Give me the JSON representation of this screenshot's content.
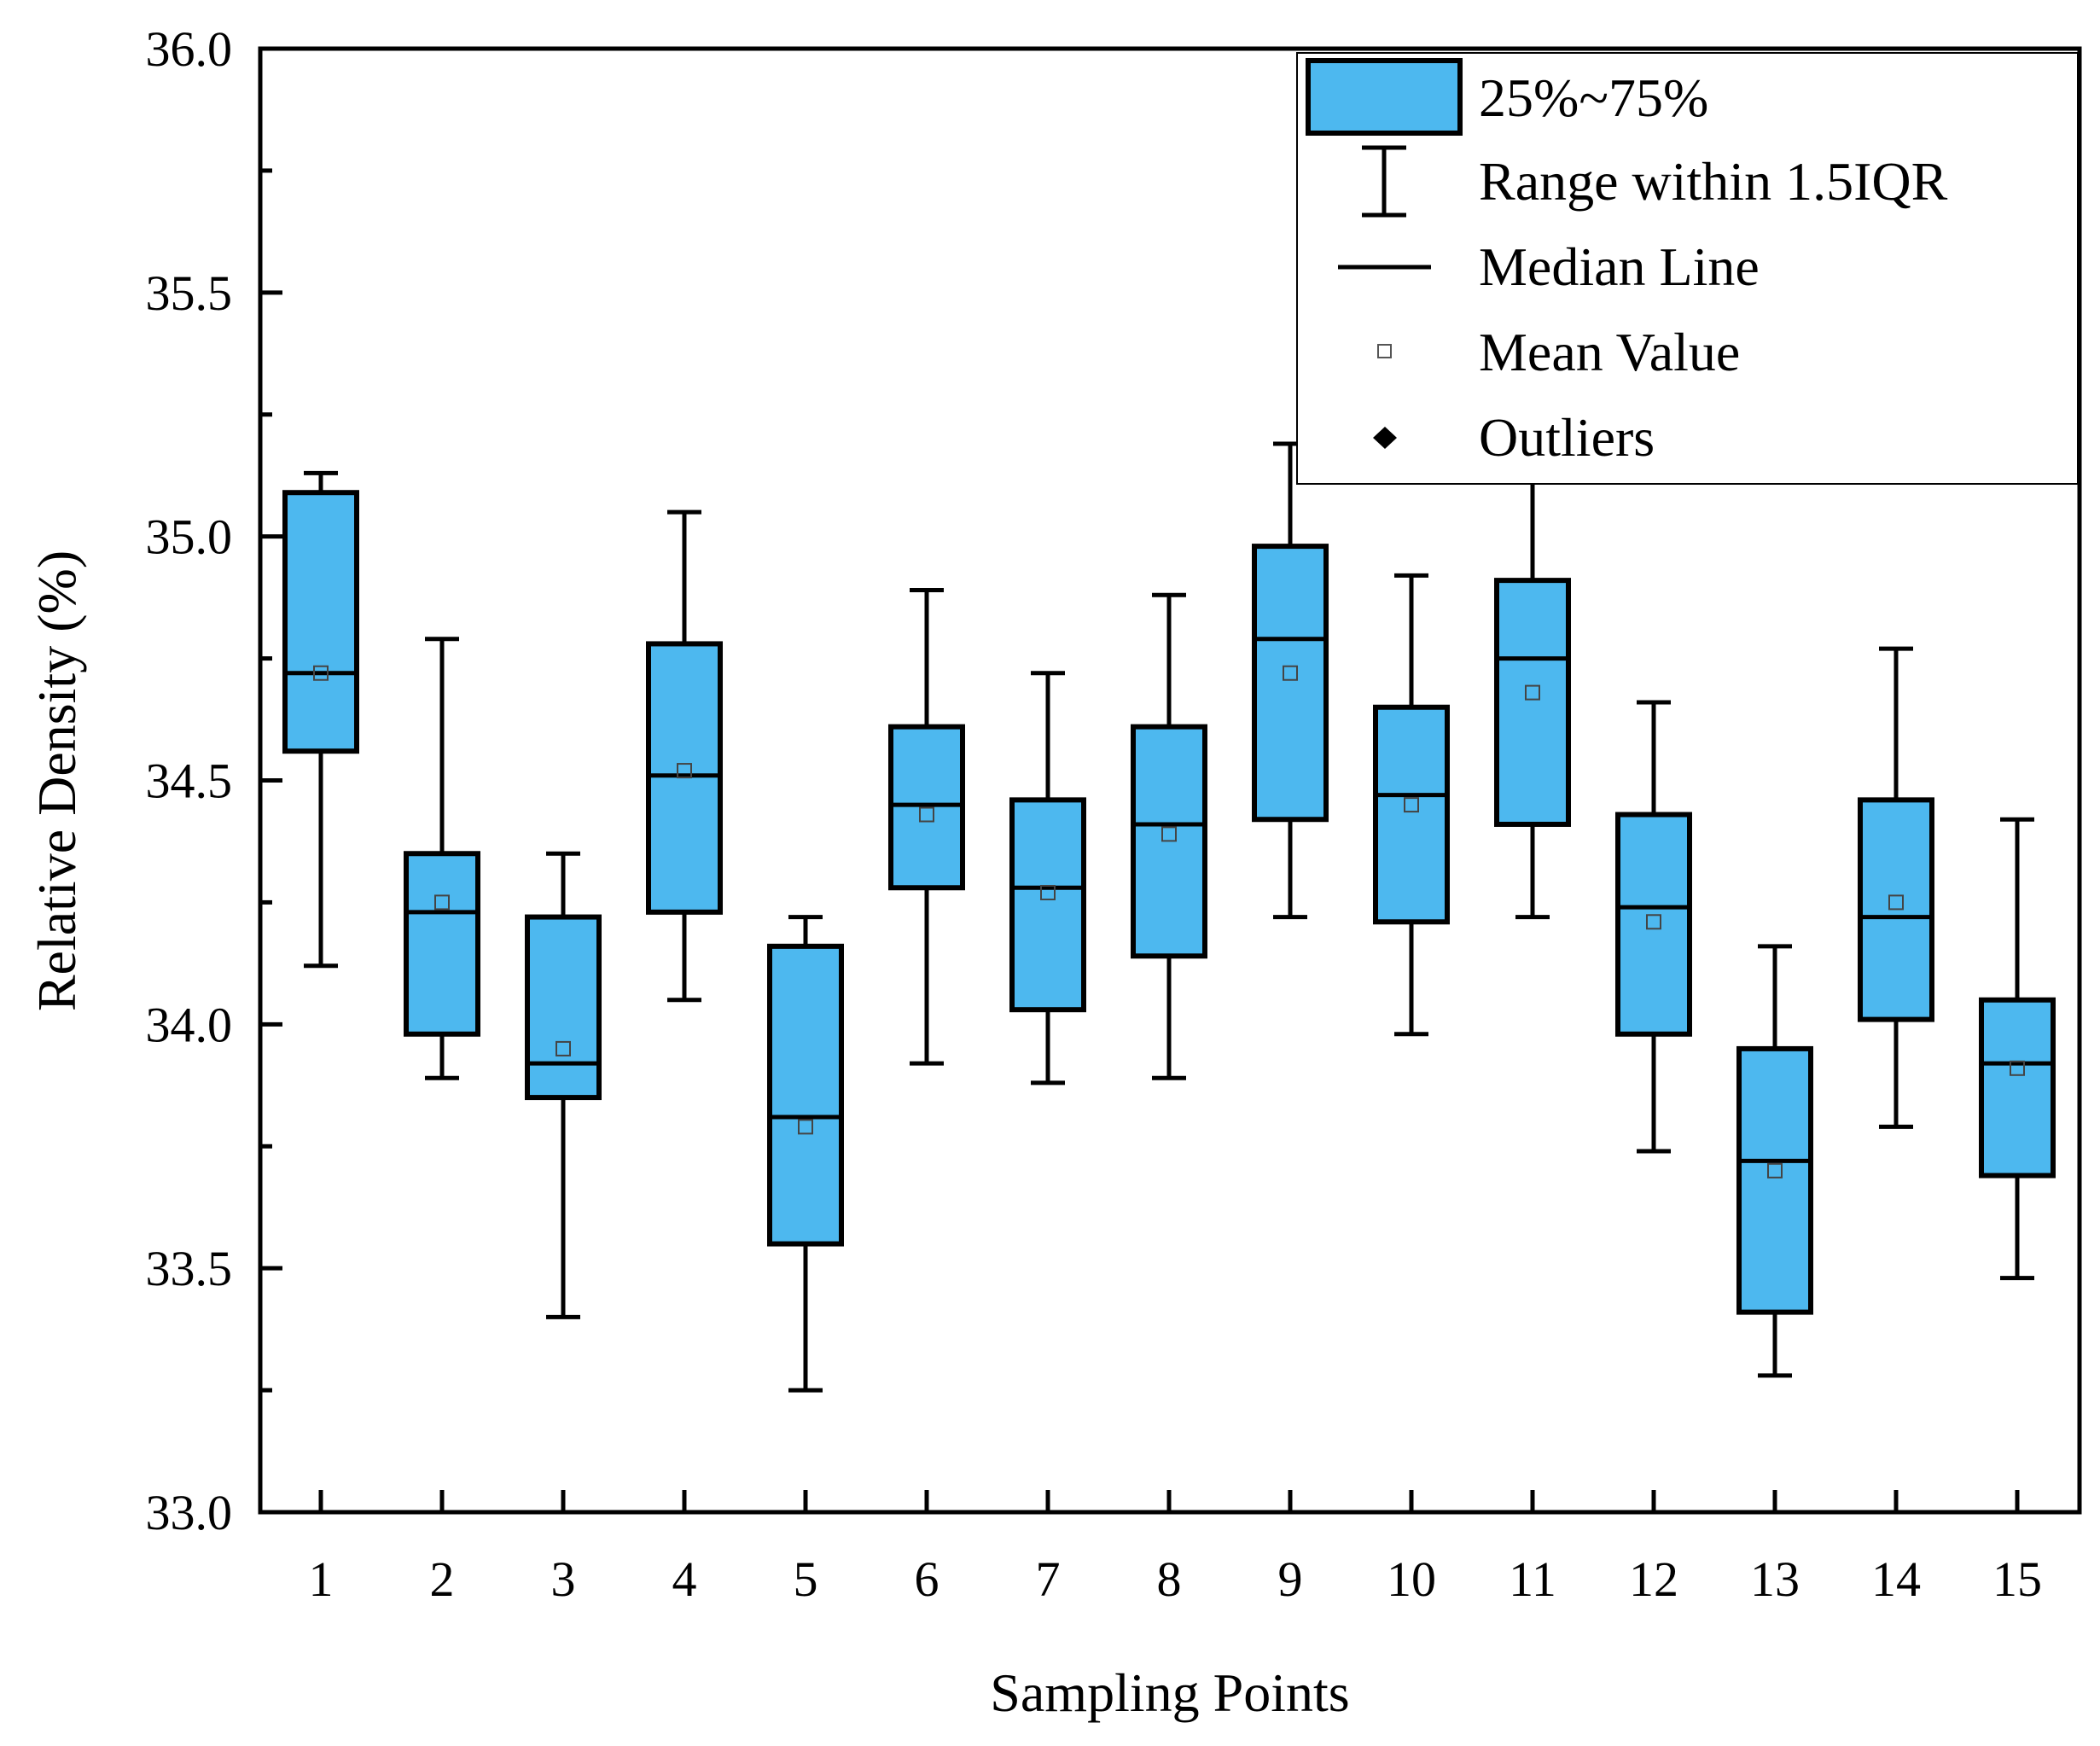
{
  "chart_data": {
    "type": "box",
    "xlabel": "Sampling Points",
    "ylabel": "Relative Density (%)",
    "ylim": [
      33.0,
      36.0
    ],
    "yticks": [
      "33.0",
      "33.5",
      "34.0",
      "34.5",
      "35.0",
      "35.5",
      "36.0"
    ],
    "categories": [
      "1",
      "2",
      "3",
      "4",
      "5",
      "6",
      "7",
      "8",
      "9",
      "10",
      "11",
      "12",
      "13",
      "14",
      "15"
    ],
    "box_color": "#4db8ef",
    "line_color": "#000000",
    "boxes": [
      {
        "category": "1",
        "whisker_low": 34.12,
        "q1": 34.56,
        "median": 34.72,
        "q3": 35.09,
        "whisker_high": 35.13,
        "mean": 34.72
      },
      {
        "category": "2",
        "whisker_low": 33.89,
        "q1": 33.98,
        "median": 34.23,
        "q3": 34.35,
        "whisker_high": 34.79,
        "mean": 34.25
      },
      {
        "category": "3",
        "whisker_low": 33.4,
        "q1": 33.85,
        "median": 33.92,
        "q3": 34.22,
        "whisker_high": 34.35,
        "mean": 33.95
      },
      {
        "category": "4",
        "whisker_low": 34.05,
        "q1": 34.23,
        "median": 34.51,
        "q3": 34.78,
        "whisker_high": 35.05,
        "mean": 34.52
      },
      {
        "category": "5",
        "whisker_low": 33.25,
        "q1": 33.55,
        "median": 33.81,
        "q3": 34.16,
        "whisker_high": 34.22,
        "mean": 33.79
      },
      {
        "category": "6",
        "whisker_low": 33.92,
        "q1": 34.28,
        "median": 34.45,
        "q3": 34.61,
        "whisker_high": 34.89,
        "mean": 34.43
      },
      {
        "category": "7",
        "whisker_low": 33.88,
        "q1": 34.03,
        "median": 34.28,
        "q3": 34.46,
        "whisker_high": 34.72,
        "mean": 34.27
      },
      {
        "category": "8",
        "whisker_low": 33.89,
        "q1": 34.14,
        "median": 34.41,
        "q3": 34.61,
        "whisker_high": 34.88,
        "mean": 34.39
      },
      {
        "category": "9",
        "whisker_low": 34.22,
        "q1": 34.42,
        "median": 34.79,
        "q3": 34.98,
        "whisker_high": 35.19,
        "mean": 34.72
      },
      {
        "category": "10",
        "whisker_low": 33.98,
        "q1": 34.21,
        "median": 34.47,
        "q3": 34.65,
        "whisker_high": 34.92,
        "mean": 34.45
      },
      {
        "category": "11",
        "whisker_low": 34.22,
        "q1": 34.41,
        "median": 34.75,
        "q3": 34.91,
        "whisker_high": 35.12,
        "mean": 34.68
      },
      {
        "category": "12",
        "whisker_low": 33.74,
        "q1": 33.98,
        "median": 34.24,
        "q3": 34.43,
        "whisker_high": 34.66,
        "mean": 34.21
      },
      {
        "category": "13",
        "whisker_low": 33.28,
        "q1": 33.41,
        "median": 33.72,
        "q3": 33.95,
        "whisker_high": 34.16,
        "mean": 33.7
      },
      {
        "category": "14",
        "whisker_low": 33.79,
        "q1": 34.01,
        "median": 34.22,
        "q3": 34.46,
        "whisker_high": 34.77,
        "mean": 34.25
      },
      {
        "category": "15",
        "whisker_low": 33.48,
        "q1": 33.69,
        "median": 33.92,
        "q3": 34.05,
        "whisker_high": 34.42,
        "mean": 33.91
      }
    ],
    "legend": {
      "placement": "top-right",
      "entries": [
        {
          "label": "25%~75%",
          "symbol": "box"
        },
        {
          "label": "Range within 1.5IQR",
          "symbol": "whisker"
        },
        {
          "label": "Median Line",
          "symbol": "line"
        },
        {
          "label": "Mean Value",
          "symbol": "open-square"
        },
        {
          "label": "Outliers",
          "symbol": "diamond"
        }
      ]
    }
  }
}
